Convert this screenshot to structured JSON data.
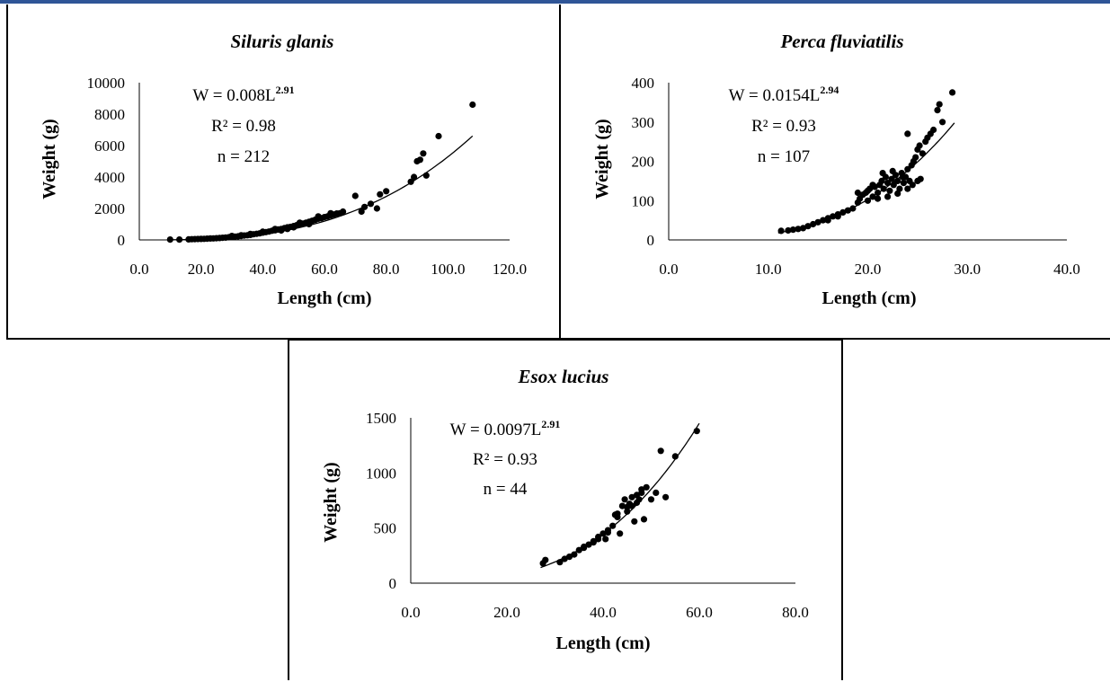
{
  "chart_data": [
    {
      "type": "scatter",
      "title": "Siluris glanis",
      "xlabel": "Length (cm)",
      "ylabel": "Weight (g)",
      "xlim": [
        0,
        120
      ],
      "ylim": [
        0,
        10000
      ],
      "x_ticks": [
        "0.0",
        "20.0",
        "40.0",
        "60.0",
        "80.0",
        "100.0",
        "120.0"
      ],
      "y_ticks": [
        "0",
        "2000",
        "4000",
        "6000",
        "8000",
        "10000"
      ],
      "equation": {
        "base": "W = 0.008L",
        "exponent": "2.91",
        "r2": "R² = 0.98",
        "n": "n = 212"
      },
      "trendline": {
        "a": 0.008,
        "b": 2.91,
        "x_range": [
          10,
          108
        ]
      },
      "grid": false,
      "points": [
        [
          10,
          20
        ],
        [
          13,
          25
        ],
        [
          16,
          35
        ],
        [
          17,
          45
        ],
        [
          18,
          50
        ],
        [
          19,
          55
        ],
        [
          20,
          65
        ],
        [
          21,
          70
        ],
        [
          22,
          80
        ],
        [
          23,
          90
        ],
        [
          24,
          95
        ],
        [
          25,
          110
        ],
        [
          26,
          120
        ],
        [
          27,
          140
        ],
        [
          28,
          150
        ],
        [
          29,
          170
        ],
        [
          30,
          190
        ],
        [
          31,
          210
        ],
        [
          32,
          230
        ],
        [
          33,
          250
        ],
        [
          34,
          280
        ],
        [
          35,
          300
        ],
        [
          36,
          320
        ],
        [
          37,
          360
        ],
        [
          38,
          390
        ],
        [
          39,
          420
        ],
        [
          40,
          460
        ],
        [
          41,
          500
        ],
        [
          42,
          530
        ],
        [
          43,
          580
        ],
        [
          44,
          610
        ],
        [
          45,
          660
        ],
        [
          46,
          700
        ],
        [
          47,
          750
        ],
        [
          48,
          800
        ],
        [
          49,
          830
        ],
        [
          50,
          880
        ],
        [
          51,
          940
        ],
        [
          52,
          990
        ],
        [
          53,
          1040
        ],
        [
          54,
          1100
        ],
        [
          55,
          1150
        ],
        [
          56,
          1220
        ],
        [
          57,
          1280
        ],
        [
          58,
          1350
        ],
        [
          59,
          1380
        ],
        [
          60,
          1450
        ],
        [
          61,
          1500
        ],
        [
          62,
          1560
        ],
        [
          63,
          1620
        ],
        [
          64,
          1680
        ],
        [
          65,
          1700
        ],
        [
          30,
          250
        ],
        [
          33,
          300
        ],
        [
          36,
          380
        ],
        [
          40,
          520
        ],
        [
          44,
          700
        ],
        [
          46,
          600
        ],
        [
          48,
          700
        ],
        [
          50,
          800
        ],
        [
          52,
          1100
        ],
        [
          55,
          1000
        ],
        [
          58,
          1500
        ],
        [
          62,
          1700
        ],
        [
          66,
          1800
        ],
        [
          70,
          2800
        ],
        [
          72,
          1800
        ],
        [
          73,
          2100
        ],
        [
          75,
          2300
        ],
        [
          77,
          2000
        ],
        [
          78,
          2900
        ],
        [
          80,
          3100
        ],
        [
          88,
          3700
        ],
        [
          89,
          4000
        ],
        [
          90,
          5000
        ],
        [
          91,
          5100
        ],
        [
          92,
          5500
        ],
        [
          93,
          4100
        ],
        [
          97,
          6600
        ],
        [
          108,
          8600
        ]
      ]
    },
    {
      "type": "scatter",
      "title": "Perca fluviatilis",
      "xlabel": "Length (cm)",
      "ylabel": "Weight (g)",
      "xlim": [
        0,
        40
      ],
      "ylim": [
        0,
        400
      ],
      "x_ticks": [
        "0.0",
        "10.0",
        "20.0",
        "30.0",
        "40.0"
      ],
      "y_ticks": [
        "0",
        "100",
        "200",
        "300",
        "400"
      ],
      "equation": {
        "base": "W = 0.0154L",
        "exponent": "2.94",
        "r2": "R² = 0.93",
        "n": "n = 107"
      },
      "trendline": {
        "a": 0.0154,
        "b": 2.94,
        "x_range": [
          11,
          28.7
        ]
      },
      "grid": false,
      "points": [
        [
          11.3,
          23
        ],
        [
          12,
          24
        ],
        [
          12.5,
          26
        ],
        [
          13,
          28
        ],
        [
          13.5,
          30
        ],
        [
          14,
          35
        ],
        [
          14.5,
          40
        ],
        [
          15,
          45
        ],
        [
          15.5,
          50
        ],
        [
          16,
          55
        ],
        [
          16.5,
          60
        ],
        [
          17,
          65
        ],
        [
          17.5,
          70
        ],
        [
          18,
          75
        ],
        [
          18.5,
          80
        ],
        [
          19,
          95
        ],
        [
          19.2,
          105
        ],
        [
          19.5,
          115
        ],
        [
          19.8,
          120
        ],
        [
          20,
          125
        ],
        [
          20.2,
          130
        ],
        [
          20.5,
          110
        ],
        [
          20.7,
          135
        ],
        [
          21,
          120
        ],
        [
          21.2,
          140
        ],
        [
          21.4,
          150
        ],
        [
          21.6,
          130
        ],
        [
          21.8,
          160
        ],
        [
          22,
          145
        ],
        [
          22.2,
          125
        ],
        [
          22.4,
          155
        ],
        [
          22.6,
          140
        ],
        [
          22.8,
          165
        ],
        [
          23,
          150
        ],
        [
          23.2,
          130
        ],
        [
          23.4,
          170
        ],
        [
          23.6,
          145
        ],
        [
          23.8,
          160
        ],
        [
          24,
          180
        ],
        [
          24.2,
          150
        ],
        [
          24.4,
          190
        ],
        [
          24.6,
          200
        ],
        [
          24.8,
          210
        ],
        [
          25,
          230
        ],
        [
          25.2,
          240
        ],
        [
          25.5,
          220
        ],
        [
          25.8,
          250
        ],
        [
          26,
          260
        ],
        [
          26.3,
          270
        ],
        [
          26.6,
          280
        ],
        [
          27,
          330
        ],
        [
          27.2,
          345
        ],
        [
          27.5,
          300
        ],
        [
          28.5,
          375
        ],
        [
          20,
          100
        ],
        [
          21,
          105
        ],
        [
          22,
          110
        ],
        [
          23,
          118
        ],
        [
          24,
          130
        ],
        [
          25,
          150
        ],
        [
          19,
          120
        ],
        [
          20.5,
          140
        ],
        [
          21.5,
          170
        ],
        [
          22.5,
          175
        ],
        [
          23.5,
          160
        ],
        [
          24.5,
          140
        ],
        [
          25.3,
          155
        ],
        [
          24,
          270
        ],
        [
          17,
          60
        ],
        [
          16,
          50
        ]
      ]
    },
    {
      "type": "scatter",
      "title": "Esox lucius",
      "xlabel": "Length (cm)",
      "ylabel": "Weight (g)",
      "xlim": [
        0,
        80
      ],
      "ylim": [
        0,
        1500
      ],
      "x_ticks": [
        "0.0",
        "20.0",
        "40.0",
        "60.0",
        "80.0"
      ],
      "y_ticks": [
        "0",
        "500",
        "1000",
        "1500"
      ],
      "equation": {
        "base": "W = 0.0097L",
        "exponent": "2.91",
        "r2": "R² = 0.93",
        "n": "n = 44"
      },
      "trendline": {
        "a": 0.0097,
        "b": 2.91,
        "x_range": [
          27,
          60
        ]
      },
      "grid": false,
      "points": [
        [
          27.5,
          180
        ],
        [
          28,
          210
        ],
        [
          31,
          190
        ],
        [
          32,
          220
        ],
        [
          33,
          240
        ],
        [
          34,
          260
        ],
        [
          35,
          300
        ],
        [
          36,
          320
        ],
        [
          37,
          350
        ],
        [
          38,
          380
        ],
        [
          39,
          420
        ],
        [
          40,
          450
        ],
        [
          40.5,
          400
        ],
        [
          41,
          480
        ],
        [
          42,
          520
        ],
        [
          42.5,
          620
        ],
        [
          43,
          600
        ],
        [
          43.5,
          450
        ],
        [
          44,
          700
        ],
        [
          44.5,
          760
        ],
        [
          45,
          650
        ],
        [
          45.5,
          720
        ],
        [
          46,
          780
        ],
        [
          46.5,
          560
        ],
        [
          47,
          800
        ],
        [
          47.5,
          760
        ],
        [
          48,
          850
        ],
        [
          48.5,
          580
        ],
        [
          49,
          870
        ],
        [
          50,
          760
        ],
        [
          51,
          820
        ],
        [
          52,
          1200
        ],
        [
          53,
          780
        ],
        [
          55,
          1150
        ],
        [
          59.5,
          1380
        ],
        [
          39,
          400
        ],
        [
          41,
          460
        ],
        [
          43,
          630
        ],
        [
          45,
          690
        ],
        [
          46,
          700
        ],
        [
          47,
          730
        ],
        [
          48,
          820
        ],
        [
          36,
          330
        ],
        [
          38,
          370
        ]
      ]
    }
  ]
}
